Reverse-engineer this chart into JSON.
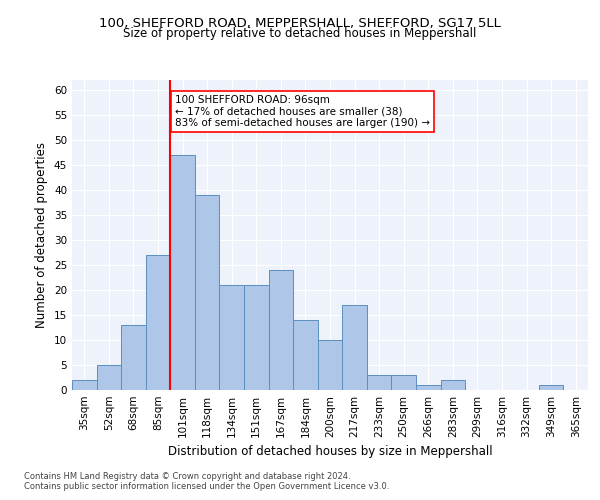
{
  "title1": "100, SHEFFORD ROAD, MEPPERSHALL, SHEFFORD, SG17 5LL",
  "title2": "Size of property relative to detached houses in Meppershall",
  "xlabel": "Distribution of detached houses by size in Meppershall",
  "ylabel": "Number of detached properties",
  "bin_labels": [
    "35sqm",
    "52sqm",
    "68sqm",
    "85sqm",
    "101sqm",
    "118sqm",
    "134sqm",
    "151sqm",
    "167sqm",
    "184sqm",
    "200sqm",
    "217sqm",
    "233sqm",
    "250sqm",
    "266sqm",
    "283sqm",
    "299sqm",
    "316sqm",
    "332sqm",
    "349sqm",
    "365sqm"
  ],
  "bar_heights": [
    2,
    5,
    13,
    27,
    47,
    39,
    21,
    21,
    24,
    14,
    10,
    17,
    3,
    3,
    1,
    2,
    0,
    0,
    0,
    1,
    0
  ],
  "bar_color": "#aec6e8",
  "bar_edge_color": "#5a8fc0",
  "vline_color": "red",
  "annotation_text": "100 SHEFFORD ROAD: 96sqm\n← 17% of detached houses are smaller (38)\n83% of semi-detached houses are larger (190) →",
  "annotation_box_color": "white",
  "annotation_box_edge": "red",
  "ylim": [
    0,
    62
  ],
  "yticks": [
    0,
    5,
    10,
    15,
    20,
    25,
    30,
    35,
    40,
    45,
    50,
    55,
    60
  ],
  "footnote1": "Contains HM Land Registry data © Crown copyright and database right 2024.",
  "footnote2": "Contains public sector information licensed under the Open Government Licence v3.0.",
  "bg_color": "#eef2fa",
  "title1_fontsize": 9.5,
  "title2_fontsize": 8.5,
  "xlabel_fontsize": 8.5,
  "ylabel_fontsize": 8.5,
  "tick_fontsize": 7.5,
  "annot_fontsize": 7.5,
  "footnote_fontsize": 6.0
}
